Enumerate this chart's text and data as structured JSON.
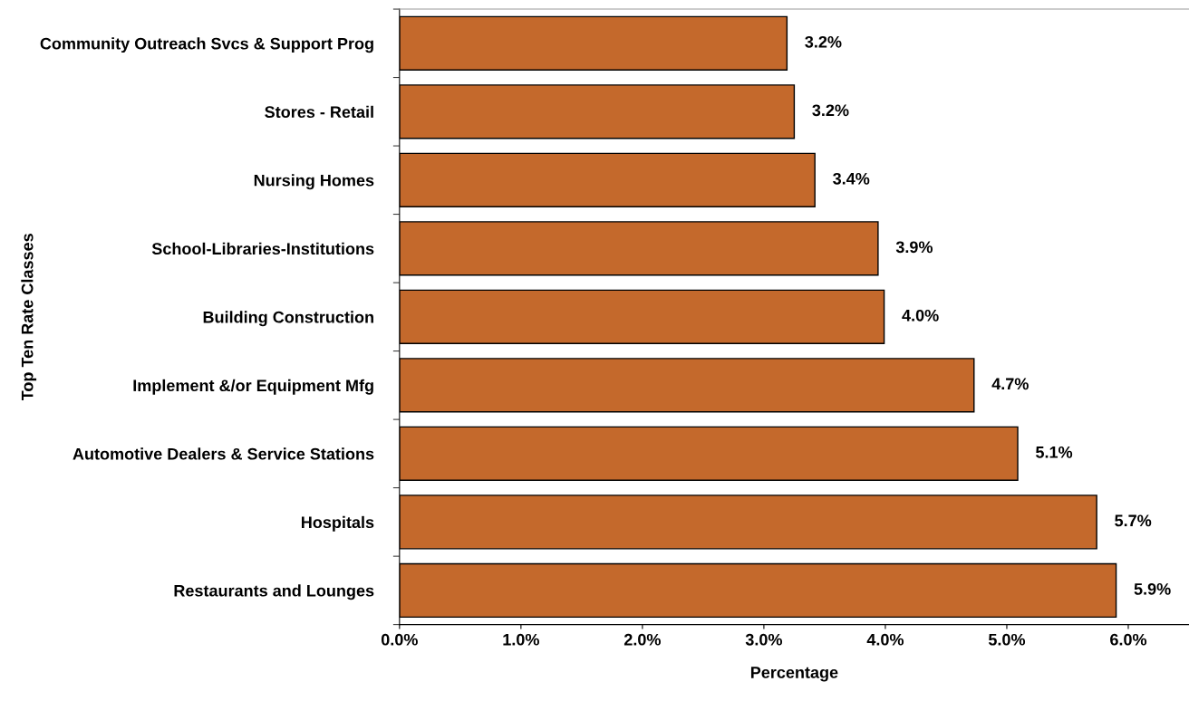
{
  "chart_data": {
    "type": "bar",
    "orientation": "horizontal",
    "xlabel": "Percentage",
    "ylabel": "Top Ten Rate Classes",
    "categories": [
      "Community Outreach Svcs & Support Prog",
      "Stores - Retail",
      "Nursing Homes",
      "School-Libraries-Institutions",
      "Building Construction",
      "Implement &/or Equipment Mfg",
      "Automotive Dealers & Service Stations",
      "Hospitals",
      "Restaurants and Lounges"
    ],
    "values": [
      3.19,
      3.25,
      3.42,
      3.94,
      3.99,
      4.73,
      5.09,
      5.74,
      5.9
    ],
    "value_labels": [
      "3.2%",
      "3.2%",
      "3.4%",
      "3.9%",
      "4.0%",
      "4.7%",
      "5.1%",
      "5.7%",
      "5.9%"
    ],
    "color": "#c4692c",
    "xlim": [
      0,
      6.5
    ],
    "xticks": [
      {
        "value": 0,
        "label": "0.0%"
      },
      {
        "value": 1,
        "label": "1.0%"
      },
      {
        "value": 2,
        "label": "2.0%"
      },
      {
        "value": 3,
        "label": "3.0%"
      },
      {
        "value": 4,
        "label": "4.0%"
      },
      {
        "value": 5,
        "label": "5.0%"
      },
      {
        "value": 6,
        "label": "6.0%"
      }
    ],
    "grid": false,
    "legend": false
  }
}
